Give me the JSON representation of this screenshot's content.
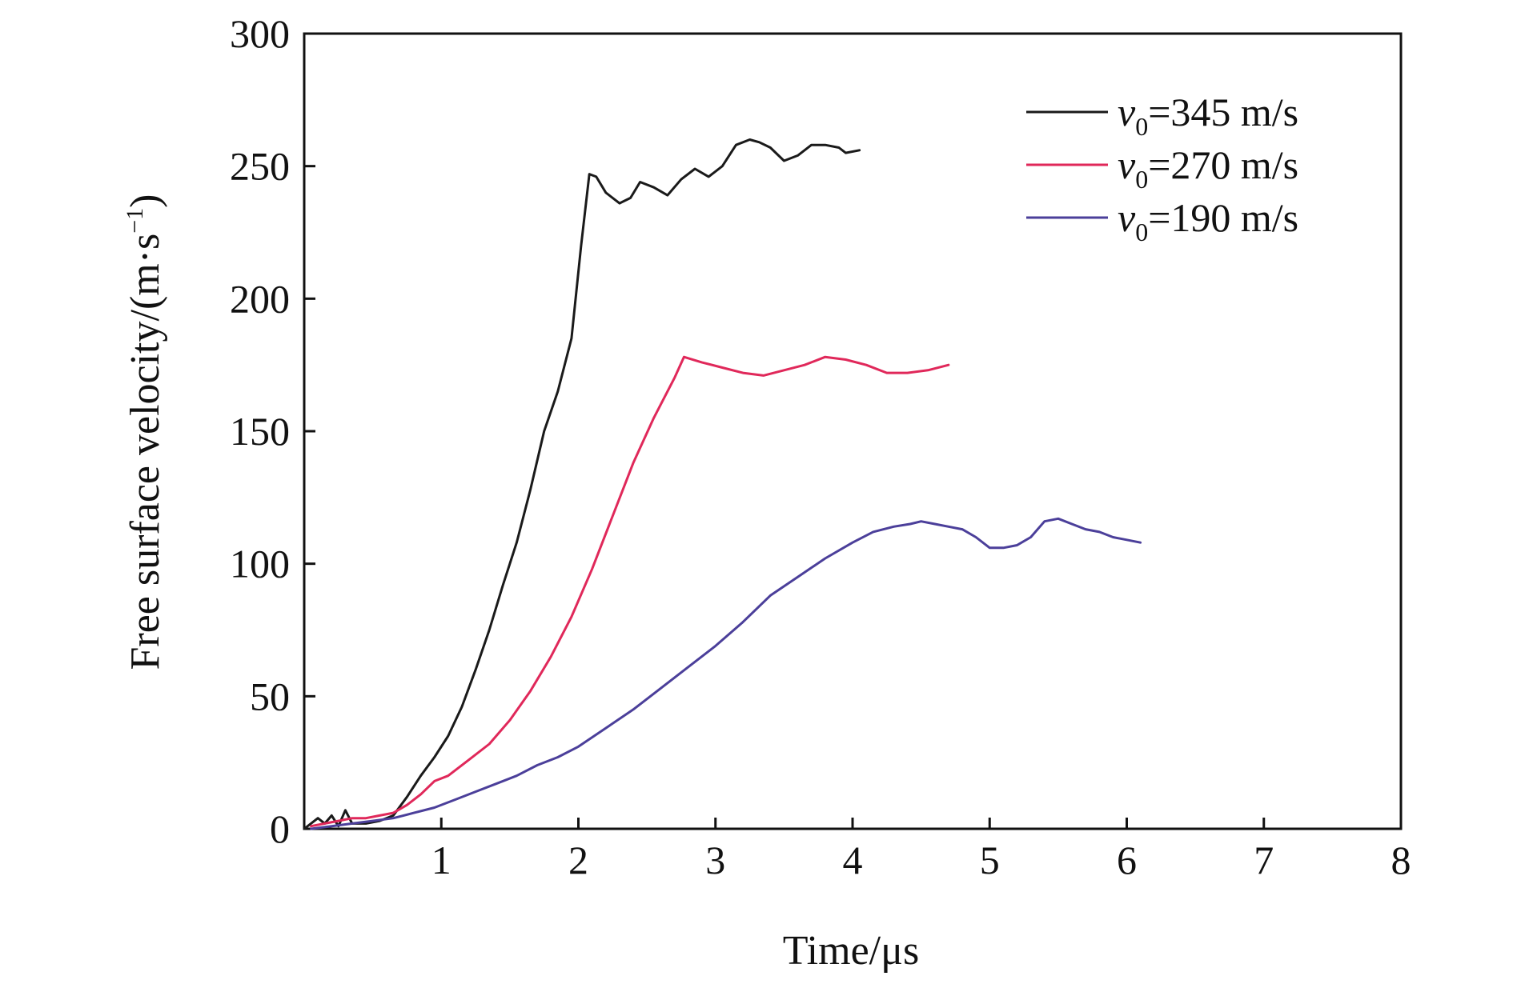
{
  "chart_data": {
    "type": "line",
    "xlabel": "Time/μs",
    "ylabel": {
      "main": "Free surface velocity/(m·s",
      "exponent": "−1",
      "close": ")"
    },
    "xlim": [
      0,
      8
    ],
    "ylim": [
      0,
      300
    ],
    "xticks": [
      1,
      2,
      3,
      4,
      5,
      6,
      7,
      8
    ],
    "yticks": [
      0,
      50,
      100,
      150,
      200,
      250,
      300
    ],
    "grid": false,
    "legend_position": "top-right",
    "series": [
      {
        "name": "v0=345 m/s",
        "label_var": "v",
        "label_sub": "0",
        "label_rest": "=345 m/s",
        "color": "#1a1a1a",
        "x": [
          0.0,
          0.1,
          0.15,
          0.2,
          0.25,
          0.3,
          0.35,
          0.45,
          0.55,
          0.65,
          0.75,
          0.85,
          0.95,
          1.05,
          1.15,
          1.25,
          1.35,
          1.45,
          1.55,
          1.65,
          1.75,
          1.85,
          1.95,
          2.02,
          2.08,
          2.13,
          2.2,
          2.3,
          2.38,
          2.45,
          2.55,
          2.65,
          2.75,
          2.85,
          2.95,
          3.05,
          3.15,
          3.25,
          3.32,
          3.4,
          3.5,
          3.6,
          3.7,
          3.8,
          3.9,
          3.95,
          4.05
        ],
        "y": [
          0,
          4,
          2,
          5,
          1,
          7,
          2,
          2,
          3,
          5,
          12,
          20,
          27,
          35,
          46,
          60,
          75,
          92,
          108,
          128,
          150,
          165,
          185,
          220,
          247,
          246,
          240,
          236,
          238,
          244,
          242,
          239,
          245,
          249,
          246,
          250,
          258,
          260,
          259,
          257,
          252,
          254,
          258,
          258,
          257,
          255,
          256
        ]
      },
      {
        "name": "v0=270 m/s",
        "label_var": "v",
        "label_sub": "0",
        "label_rest": "=270 m/s",
        "color": "#e0285a",
        "x": [
          0.05,
          0.15,
          0.25,
          0.35,
          0.45,
          0.55,
          0.65,
          0.75,
          0.85,
          0.95,
          1.05,
          1.2,
          1.35,
          1.5,
          1.65,
          1.8,
          1.95,
          2.1,
          2.25,
          2.4,
          2.55,
          2.7,
          2.77,
          2.9,
          3.05,
          3.2,
          3.35,
          3.5,
          3.65,
          3.8,
          3.95,
          4.1,
          4.25,
          4.4,
          4.55,
          4.7
        ],
        "y": [
          1,
          2,
          3,
          4,
          4,
          5,
          6,
          9,
          13,
          18,
          20,
          26,
          32,
          41,
          52,
          65,
          80,
          98,
          118,
          138,
          155,
          170,
          178,
          176,
          174,
          172,
          171,
          173,
          175,
          178,
          177,
          175,
          172,
          172,
          173,
          175
        ]
      },
      {
        "name": "v0=190 m/s",
        "label_var": "v",
        "label_sub": "0",
        "label_rest": "=190 m/s",
        "color": "#4b3f9a",
        "x": [
          0.05,
          0.2,
          0.35,
          0.5,
          0.65,
          0.8,
          0.95,
          1.1,
          1.25,
          1.4,
          1.55,
          1.7,
          1.85,
          2.0,
          2.2,
          2.4,
          2.6,
          2.8,
          3.0,
          3.2,
          3.4,
          3.6,
          3.8,
          4.0,
          4.15,
          4.3,
          4.42,
          4.5,
          4.6,
          4.7,
          4.8,
          4.9,
          5.0,
          5.1,
          5.2,
          5.3,
          5.4,
          5.5,
          5.6,
          5.7,
          5.8,
          5.9,
          6.0,
          6.1
        ],
        "y": [
          0,
          1,
          2,
          3,
          4,
          6,
          8,
          11,
          14,
          17,
          20,
          24,
          27,
          31,
          38,
          45,
          53,
          61,
          69,
          78,
          88,
          95,
          102,
          108,
          112,
          114,
          115,
          116,
          115,
          114,
          113,
          110,
          106,
          106,
          107,
          110,
          116,
          117,
          115,
          113,
          112,
          110,
          109,
          108
        ]
      }
    ]
  }
}
